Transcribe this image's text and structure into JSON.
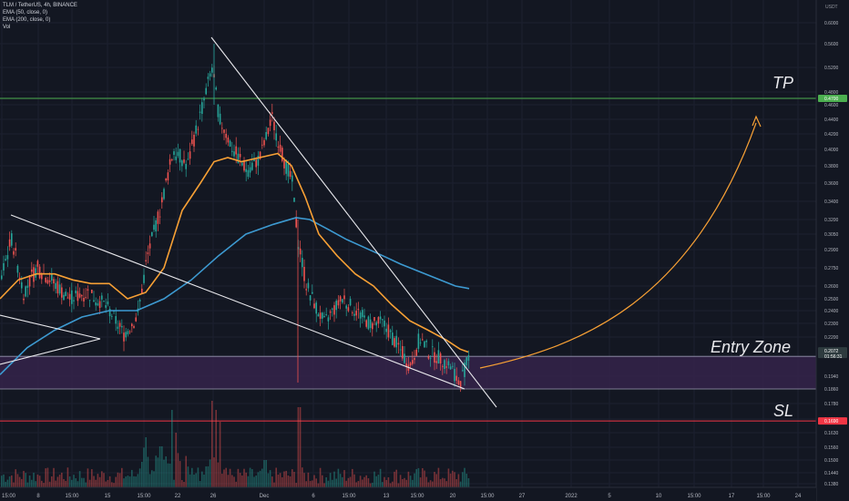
{
  "header": {
    "symbol": "TLM / TetherUS, 4h, BINANCE",
    "indicators": [
      "EMA (50, close, 0)",
      "EMA (200, close, 0)",
      "Vol"
    ]
  },
  "axis": {
    "unit_label": "USDT",
    "ticks": [
      "0.6000",
      "0.5600",
      "0.5200",
      "0.4800",
      "0.4600",
      "0.4400",
      "0.4200",
      "0.4000",
      "0.3800",
      "0.3600",
      "0.3400",
      "0.3200",
      "0.3050",
      "0.2900",
      "0.2750",
      "0.2600",
      "0.2500",
      "0.2400",
      "0.2300",
      "0.2200",
      "0.1940",
      "0.1860",
      "0.1780",
      "0.1700",
      "0.1630",
      "0.1560",
      "0.1500",
      "0.1440",
      "0.1380"
    ],
    "date_ticks": [
      "15:00",
      "8",
      "15:00",
      "15",
      "15:00",
      "22",
      "26",
      "Dec",
      "6",
      "15:00",
      "13",
      "15:00",
      "20",
      "15:00",
      "27",
      "2022",
      "5",
      "10",
      "15:00",
      "17",
      "15:00",
      "24"
    ]
  },
  "tags": {
    "tp_price": "0.4700",
    "current_price": "0.2072",
    "countdown": "01:56:31",
    "sl_price": "0.1690"
  },
  "annotations": {
    "tp": "TP",
    "entry": "Entry Zone",
    "sl": "SL"
  },
  "colors": {
    "background": "#131722",
    "up": "#26a69a",
    "down": "#ef5350",
    "ema50": "#f7a035",
    "ema200": "#3d9ad1",
    "tp_line": "#4caf50",
    "sl_line": "#f23645",
    "entry_zone": "#35234a",
    "arrow": "#f7a035"
  },
  "chart_data": {
    "type": "candlestick",
    "levels": {
      "tp": 0.47,
      "sl": 0.169,
      "entry_zone": [
        0.186,
        0.2072
      ]
    },
    "price_path": [
      [
        0,
        0.265
      ],
      [
        12,
        0.3
      ],
      [
        25,
        0.255
      ],
      [
        40,
        0.275
      ],
      [
        55,
        0.265
      ],
      [
        75,
        0.25
      ],
      [
        95,
        0.255
      ],
      [
        115,
        0.245
      ],
      [
        135,
        0.222
      ],
      [
        150,
        0.235
      ],
      [
        160,
        0.28
      ],
      [
        175,
        0.33
      ],
      [
        190,
        0.4
      ],
      [
        205,
        0.38
      ],
      [
        220,
        0.45
      ],
      [
        232,
        0.52
      ],
      [
        240,
        0.44
      ],
      [
        255,
        0.4
      ],
      [
        270,
        0.375
      ],
      [
        285,
        0.39
      ],
      [
        298,
        0.44
      ],
      [
        310,
        0.39
      ],
      [
        320,
        0.36
      ],
      [
        326,
        0.3
      ],
      [
        335,
        0.262
      ],
      [
        345,
        0.245
      ],
      [
        355,
        0.23
      ],
      [
        365,
        0.24
      ],
      [
        375,
        0.25
      ],
      [
        390,
        0.24
      ],
      [
        405,
        0.23
      ],
      [
        420,
        0.23
      ],
      [
        435,
        0.215
      ],
      [
        450,
        0.2
      ],
      [
        460,
        0.22
      ],
      [
        470,
        0.21
      ],
      [
        485,
        0.205
      ],
      [
        495,
        0.2
      ],
      [
        503,
        0.189
      ],
      [
        508,
        0.196
      ],
      [
        514,
        0.207
      ]
    ],
    "ema50": [
      [
        0,
        0.25
      ],
      [
        20,
        0.265
      ],
      [
        40,
        0.27
      ],
      [
        60,
        0.27
      ],
      [
        80,
        0.265
      ],
      [
        100,
        0.262
      ],
      [
        120,
        0.262
      ],
      [
        140,
        0.25
      ],
      [
        160,
        0.255
      ],
      [
        180,
        0.275
      ],
      [
        200,
        0.33
      ],
      [
        220,
        0.36
      ],
      [
        235,
        0.385
      ],
      [
        250,
        0.39
      ],
      [
        265,
        0.385
      ],
      [
        285,
        0.39
      ],
      [
        305,
        0.395
      ],
      [
        320,
        0.38
      ],
      [
        335,
        0.345
      ],
      [
        350,
        0.305
      ],
      [
        370,
        0.285
      ],
      [
        390,
        0.27
      ],
      [
        410,
        0.26
      ],
      [
        430,
        0.245
      ],
      [
        450,
        0.232
      ],
      [
        470,
        0.225
      ],
      [
        490,
        0.218
      ],
      [
        505,
        0.212
      ],
      [
        514,
        0.21
      ]
    ],
    "ema200": [
      [
        0,
        0.195
      ],
      [
        30,
        0.213
      ],
      [
        60,
        0.225
      ],
      [
        90,
        0.235
      ],
      [
        120,
        0.24
      ],
      [
        150,
        0.24
      ],
      [
        180,
        0.25
      ],
      [
        210,
        0.265
      ],
      [
        240,
        0.285
      ],
      [
        270,
        0.305
      ],
      [
        300,
        0.315
      ],
      [
        325,
        0.322
      ],
      [
        340,
        0.32
      ],
      [
        360,
        0.31
      ],
      [
        380,
        0.3
      ],
      [
        400,
        0.292
      ],
      [
        420,
        0.285
      ],
      [
        440,
        0.278
      ],
      [
        460,
        0.272
      ],
      [
        480,
        0.266
      ],
      [
        500,
        0.26
      ],
      [
        515,
        0.258
      ]
    ]
  }
}
